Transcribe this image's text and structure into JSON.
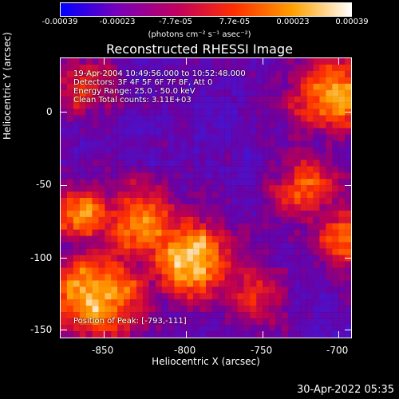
{
  "colorbar": {
    "ticks": [
      "-0.00039",
      "-0.00023",
      "-7.7e-05",
      "7.7e-05",
      "0.00023",
      "0.00039"
    ],
    "units": "(photons cm⁻² s⁻¹ asec⁻²)",
    "colors": [
      "#0000ff",
      "#7a00b8",
      "#c00060",
      "#ff3000",
      "#ffa000",
      "#ffffff"
    ]
  },
  "title": "Reconstructed RHESSI Image",
  "annotations": {
    "time_range": "19-Apr-2004 10:49:56.000 to 10:52:48.000",
    "detectors": "Detectors: 3F 4F 5F 6F 7F 8F, Att 0",
    "energy": "Energy Range: 25.0 - 50.0 keV",
    "clean": "Clean    Total counts: 3.11E+03",
    "peak": "Position of Peak: [-793,-111]"
  },
  "axes": {
    "xlabel": "Heliocentric X (arcsec)",
    "ylabel": "Heliocentric Y (arcsec)",
    "xticks": [
      "-850",
      "-800",
      "-750",
      "-700"
    ],
    "yticks": [
      "0",
      "-50",
      "-100",
      "-150"
    ],
    "xlim": [
      -880,
      -690
    ],
    "ylim": [
      -155,
      28
    ]
  },
  "footer": "30-Apr-2022 05:35"
}
